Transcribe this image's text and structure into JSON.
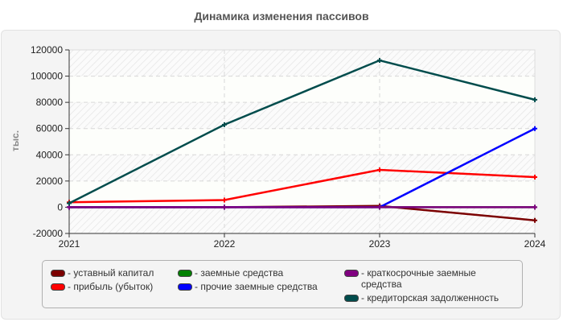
{
  "chart_data": {
    "type": "line",
    "title": "Динамика изменения пассивов",
    "xlabel": "",
    "ylabel": "тыс.",
    "x": [
      "2021",
      "2022",
      "2023",
      "2024"
    ],
    "ylim": [
      -20000,
      120000
    ],
    "yticks": [
      "120000",
      "100000",
      "80000",
      "60000",
      "40000",
      "20000",
      "0",
      "-20000"
    ],
    "grid": true,
    "legend_position": "bottom",
    "series": [
      {
        "name": "уставный капитал",
        "color": "#7b0000",
        "values": [
          0,
          0,
          1000,
          -10000
        ]
      },
      {
        "name": "прибыль (убыток)",
        "color": "#ff0000",
        "values": [
          3800,
          5500,
          28500,
          23000
        ]
      },
      {
        "name": "заемные средства",
        "color": "#008000",
        "values": [
          0,
          0,
          0,
          0
        ]
      },
      {
        "name": "прочие заемные средства",
        "color": "#0000ff",
        "values": [
          0,
          0,
          0,
          60000
        ]
      },
      {
        "name": "краткосрочные заемные средства",
        "color": "#800080",
        "values": [
          0,
          0,
          0,
          0
        ]
      },
      {
        "name": "кредиторская задолженность",
        "color": "#004c4c",
        "values": [
          3000,
          63000,
          112000,
          82000
        ]
      }
    ]
  },
  "legend": {
    "items": [
      {
        "label": "- уставный капитал",
        "color": "#7b0000"
      },
      {
        "label": "- прибыль (убыток)",
        "color": "#ff0000"
      },
      {
        "label": "- заемные средства",
        "color": "#008000"
      },
      {
        "label": "- прочие заемные средства",
        "color": "#0000ff"
      },
      {
        "label": "- краткосрочные заемные средства",
        "color": "#800080"
      },
      {
        "label": "- кредиторская задолженность",
        "color": "#004c4c"
      }
    ]
  }
}
